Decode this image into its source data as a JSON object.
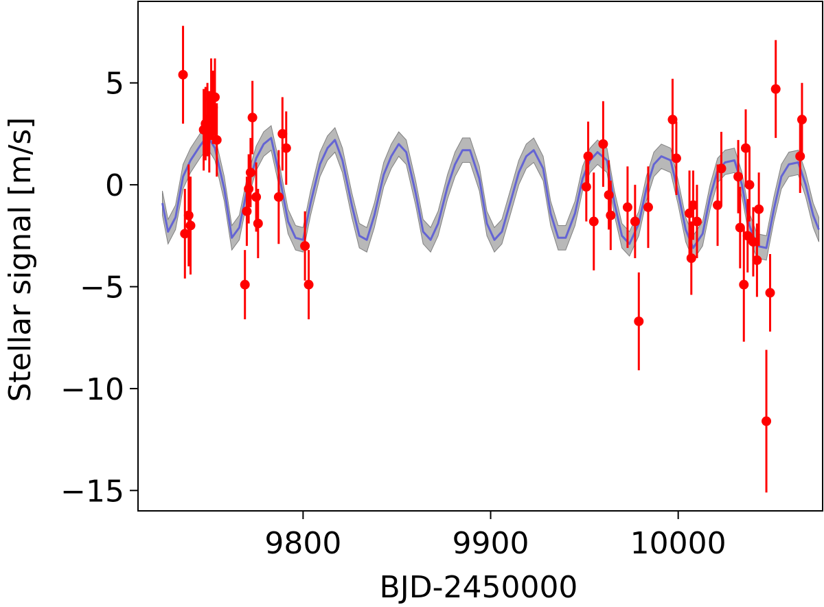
{
  "chart_data": {
    "type": "scatter",
    "title": "",
    "xlabel": "BJD-2450000",
    "ylabel": "Stellar signal [m/s]",
    "xlim": [
      9712,
      10077
    ],
    "ylim": [
      -16,
      9
    ],
    "xticks": [
      9800,
      9900,
      10000
    ],
    "xtick_labels": [
      "9800",
      "9900",
      "10000"
    ],
    "yticks": [
      5,
      0,
      -5,
      -10,
      -15
    ],
    "ytick_labels": [
      "5",
      "0",
      "−5",
      "−10",
      "−15"
    ],
    "grid": false,
    "legend": "none",
    "colors": {
      "points": "#ff0000",
      "model": "#5b5bd6",
      "band": "#a0a0a0"
    },
    "series": [
      {
        "kind": "errorbar",
        "points": [
          {
            "x": 9736,
            "y": 5.4,
            "err": 2.4
          },
          {
            "x": 9737,
            "y": -2.4,
            "err": 2.2
          },
          {
            "x": 9739,
            "y": -1.5,
            "err": 2.5
          },
          {
            "x": 9740,
            "y": -2.0,
            "err": 2.4
          },
          {
            "x": 9747,
            "y": 2.7,
            "err": 2.0
          },
          {
            "x": 9748,
            "y": 3.0,
            "err": 1.8
          },
          {
            "x": 9749,
            "y": 3.2,
            "err": 1.8
          },
          {
            "x": 9750,
            "y": 2.6,
            "err": 2.0
          },
          {
            "x": 9751,
            "y": 4.2,
            "err": 2.0
          },
          {
            "x": 9752,
            "y": 3.8,
            "err": 1.8
          },
          {
            "x": 9753,
            "y": 4.3,
            "err": 1.9
          },
          {
            "x": 9754,
            "y": 2.2,
            "err": 1.8
          },
          {
            "x": 9769,
            "y": -4.9,
            "err": 1.7
          },
          {
            "x": 9770,
            "y": -1.3,
            "err": 1.7
          },
          {
            "x": 9771,
            "y": -0.2,
            "err": 1.7
          },
          {
            "x": 9772,
            "y": 0.6,
            "err": 1.7
          },
          {
            "x": 9773,
            "y": 3.3,
            "err": 1.8
          },
          {
            "x": 9775,
            "y": -0.6,
            "err": 1.7
          },
          {
            "x": 9776,
            "y": -1.9,
            "err": 1.7
          },
          {
            "x": 9787,
            "y": -0.6,
            "err": 2.3
          },
          {
            "x": 9789,
            "y": 2.5,
            "err": 1.8
          },
          {
            "x": 9791,
            "y": 1.8,
            "err": 1.8
          },
          {
            "x": 9801,
            "y": -3.0,
            "err": 1.7
          },
          {
            "x": 9803,
            "y": -4.9,
            "err": 1.7
          },
          {
            "x": 9951,
            "y": -0.1,
            "err": 1.7
          },
          {
            "x": 9952,
            "y": 1.4,
            "err": 1.7
          },
          {
            "x": 9955,
            "y": -1.8,
            "err": 2.4
          },
          {
            "x": 9960,
            "y": 2.0,
            "err": 2.1
          },
          {
            "x": 9963,
            "y": -0.5,
            "err": 1.7
          },
          {
            "x": 9964,
            "y": -1.5,
            "err": 1.7
          },
          {
            "x": 9973,
            "y": -1.1,
            "err": 2.0
          },
          {
            "x": 9977,
            "y": -1.8,
            "err": 1.8
          },
          {
            "x": 9979,
            "y": -6.7,
            "err": 2.4
          },
          {
            "x": 9984,
            "y": -1.1,
            "err": 2.0
          },
          {
            "x": 9997,
            "y": 3.2,
            "err": 2.0
          },
          {
            "x": 9999,
            "y": 1.3,
            "err": 1.8
          },
          {
            "x": 10006,
            "y": -1.4,
            "err": 2.1
          },
          {
            "x": 10007,
            "y": -3.6,
            "err": 1.8
          },
          {
            "x": 10008,
            "y": -1.0,
            "err": 1.7
          },
          {
            "x": 10010,
            "y": -1.8,
            "err": 1.8
          },
          {
            "x": 10021,
            "y": -1.0,
            "err": 2.0
          },
          {
            "x": 10023,
            "y": 0.8,
            "err": 1.8
          },
          {
            "x": 10032,
            "y": 0.4,
            "err": 1.8
          },
          {
            "x": 10033,
            "y": -2.1,
            "err": 2.0
          },
          {
            "x": 10035,
            "y": -4.9,
            "err": 2.8
          },
          {
            "x": 10036,
            "y": 1.8,
            "err": 1.9
          },
          {
            "x": 10037,
            "y": -2.5,
            "err": 1.8
          },
          {
            "x": 10038,
            "y": 0.0,
            "err": 1.8
          },
          {
            "x": 10040,
            "y": -2.8,
            "err": 1.7
          },
          {
            "x": 10042,
            "y": -3.7,
            "err": 1.8
          },
          {
            "x": 10043,
            "y": -1.2,
            "err": 1.8
          },
          {
            "x": 10047,
            "y": -11.6,
            "err": 3.5
          },
          {
            "x": 10049,
            "y": -5.3,
            "err": 1.9
          },
          {
            "x": 10052,
            "y": 4.7,
            "err": 2.4
          },
          {
            "x": 10065,
            "y": 1.4,
            "err": 1.8
          },
          {
            "x": 10066,
            "y": 3.2,
            "err": 1.8
          }
        ]
      },
      {
        "kind": "line",
        "x": [
          9725,
          9728,
          9732,
          9736,
          9740,
          9745,
          9749,
          9753,
          9758,
          9762,
          9766,
          9770,
          9775,
          9779,
          9783,
          9787,
          9792,
          9796,
          9800,
          9804,
          9809,
          9813,
          9817,
          9821,
          9826,
          9830,
          9834,
          9838,
          9843,
          9847,
          9851,
          9855,
          9860,
          9864,
          9868,
          9872,
          9877,
          9881,
          9885,
          9889,
          9894,
          9898,
          9902,
          9906,
          9911,
          9915,
          9919,
          9923,
          9928,
          9932,
          9936,
          9940,
          9945,
          9949,
          9953,
          9957,
          9962,
          9966,
          9970,
          9974,
          9979,
          9983,
          9987,
          9991,
          9996,
          10000,
          10004,
          10008,
          10013,
          10017,
          10021,
          10025,
          10030,
          10034,
          10038,
          10042,
          10047,
          10051,
          10055,
          10059,
          10064,
          10068,
          10072,
          10075
        ],
        "y": [
          -0.9,
          -2.3,
          -1.6,
          0.4,
          1.2,
          1.9,
          2.4,
          1.8,
          -0.2,
          -2.6,
          -2.1,
          -0.3,
          1.3,
          2.0,
          2.3,
          0.6,
          -1.8,
          -2.6,
          -2.7,
          -0.9,
          1.0,
          1.8,
          2.2,
          1.2,
          -1.0,
          -2.5,
          -2.7,
          -1.5,
          0.5,
          1.4,
          2.0,
          1.6,
          -0.4,
          -2.3,
          -2.7,
          -1.9,
          -0.1,
          1.0,
          1.7,
          1.7,
          0.3,
          -1.9,
          -2.7,
          -2.3,
          -0.7,
          0.6,
          1.4,
          1.7,
          0.8,
          -1.4,
          -2.6,
          -2.6,
          -1.4,
          0.3,
          1.2,
          1.6,
          1.2,
          -0.9,
          -2.5,
          -2.9,
          -1.9,
          -0.2,
          1.0,
          1.4,
          1.2,
          -0.4,
          -2.2,
          -3.1,
          -2.4,
          -0.6,
          0.7,
          1.1,
          1.2,
          0.0,
          -2.0,
          -3.0,
          -3.1,
          -1.2,
          0.4,
          1.0,
          1.1,
          0.0,
          -1.5,
          -2.2
        ]
      }
    ],
    "band_halfwidth": 0.6
  }
}
